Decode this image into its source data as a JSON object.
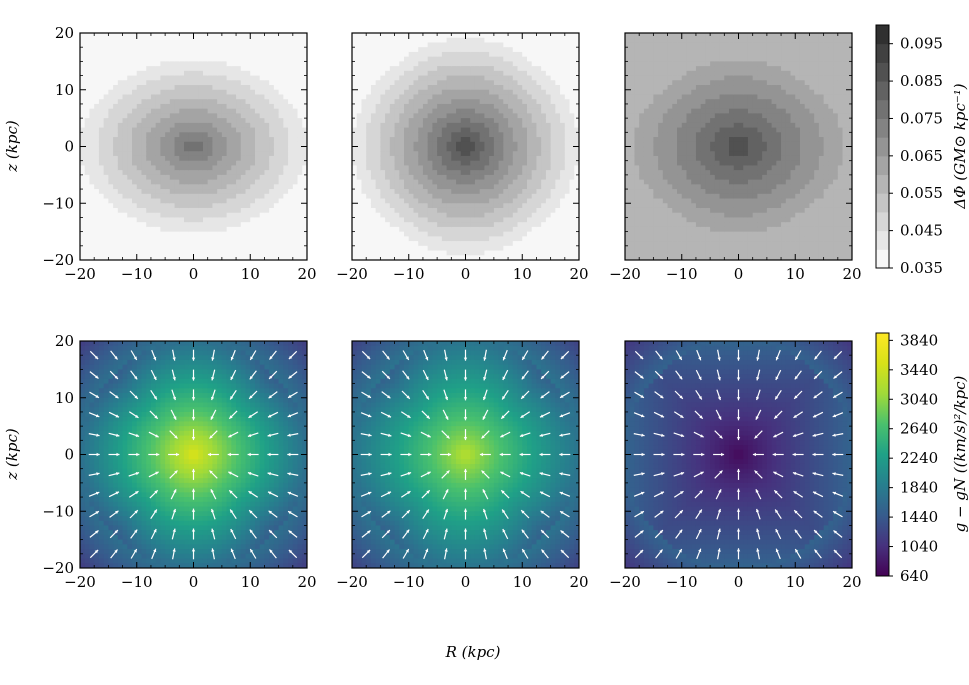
{
  "figure": {
    "shared_xlabel": "R (kpc)",
    "row_ylabel": "z (kpc)"
  },
  "chart_data": [
    {
      "type": "heatmap",
      "row": "top",
      "panel": 1,
      "x_range": [
        -20,
        20
      ],
      "y_range": [
        -20,
        20
      ],
      "xticks": [
        -20,
        -10,
        0,
        10,
        20
      ],
      "yticks": [
        -20,
        -10,
        0,
        10,
        20
      ],
      "ylabel": "z (kpc)",
      "colormap": "Greys",
      "center_value": 0.08,
      "edge_value": 0.04,
      "corner_value": 0.038,
      "vertical_flattening": 1.3,
      "levels": [
        0.035,
        0.04,
        0.045,
        0.05,
        0.055,
        0.06,
        0.065,
        0.07,
        0.075,
        0.08
      ]
    },
    {
      "type": "heatmap",
      "row": "top",
      "panel": 2,
      "x_range": [
        -20,
        20
      ],
      "y_range": [
        -20,
        20
      ],
      "xticks": [
        -20,
        -10,
        0,
        10,
        20
      ],
      "yticks": [
        -20,
        -10,
        0,
        10,
        20
      ],
      "colormap": "Greys",
      "center_value": 0.092,
      "edge_value": 0.04,
      "corner_value": 0.037,
      "vertical_flattening": 1.05,
      "levels": [
        0.035,
        0.04,
        0.045,
        0.05,
        0.055,
        0.06,
        0.065,
        0.07,
        0.075,
        0.08,
        0.085,
        0.09
      ]
    },
    {
      "type": "heatmap",
      "row": "top",
      "panel": 3,
      "x_range": [
        -20,
        20
      ],
      "y_range": [
        -20,
        20
      ],
      "xticks": [
        -20,
        -10,
        0,
        10,
        20
      ],
      "yticks": [
        -20,
        -10,
        0,
        10,
        20
      ],
      "colormap": "Greys",
      "center_value": 0.09,
      "edge_value": 0.058,
      "corner_value": 0.055,
      "vertical_flattening": 1.2,
      "levels": [
        0.055,
        0.06,
        0.065,
        0.07,
        0.075,
        0.08,
        0.085,
        0.09
      ]
    },
    {
      "type": "colorbar",
      "row": "top",
      "label": "ΔΦ (GM⊙ kpc⁻¹)",
      "range": [
        0.035,
        0.1
      ],
      "colormap": "Greys",
      "ticks": [
        "0.035",
        "0.045",
        "0.055",
        "0.065",
        "0.075",
        "0.085",
        "0.095"
      ],
      "n_bands": 13
    },
    {
      "type": "heatmap",
      "row": "bottom",
      "panel": 1,
      "overlay": "quiver",
      "x_range": [
        -20,
        20
      ],
      "y_range": [
        -20,
        20
      ],
      "xticks": [
        -20,
        -10,
        0,
        10,
        20
      ],
      "yticks": [
        -20,
        -10,
        0,
        10,
        20
      ],
      "ylabel": "z (kpc)",
      "colormap": "viridis",
      "center_value": 3600,
      "edge_value": 1700,
      "corner_value": 1150,
      "arrow_direction": "toward-center",
      "arrow_grid": [
        -17.5,
        -14,
        -10.5,
        -7,
        -3.5,
        0,
        3.5,
        7,
        10.5,
        14,
        17.5
      ]
    },
    {
      "type": "heatmap",
      "row": "bottom",
      "panel": 2,
      "overlay": "quiver",
      "x_range": [
        -20,
        20
      ],
      "y_range": [
        -20,
        20
      ],
      "xticks": [
        -20,
        -10,
        0,
        10,
        20
      ],
      "yticks": [
        -20,
        -10,
        0,
        10,
        20
      ],
      "colormap": "viridis",
      "center_value": 3300,
      "edge_value": 1750,
      "corner_value": 1200,
      "arrow_direction": "toward-center",
      "arrow_grid": [
        -17.5,
        -14,
        -10.5,
        -7,
        -3.5,
        0,
        3.5,
        7,
        10.5,
        14,
        17.5
      ]
    },
    {
      "type": "heatmap",
      "row": "bottom",
      "panel": 3,
      "overlay": "quiver",
      "x_range": [
        -20,
        20
      ],
      "y_range": [
        -20,
        20
      ],
      "xticks": [
        -20,
        -10,
        0,
        10,
        20
      ],
      "yticks": [
        -20,
        -10,
        0,
        10,
        20
      ],
      "colormap": "viridis",
      "center_value": 700,
      "edge_value": 1550,
      "corner_value": 1100,
      "arrow_direction": "toward-center",
      "arrow_grid": [
        -17.5,
        -14,
        -10.5,
        -7,
        -3.5,
        0,
        3.5,
        7,
        10.5,
        14,
        17.5
      ]
    },
    {
      "type": "colorbar",
      "row": "bottom",
      "label": "g − gN ((km/s)²/kpc)",
      "range": [
        640,
        3940
      ],
      "colormap": "viridis",
      "ticks": [
        "640",
        "1040",
        "1440",
        "1840",
        "2240",
        "2640",
        "3040",
        "3440",
        "3840"
      ]
    }
  ]
}
